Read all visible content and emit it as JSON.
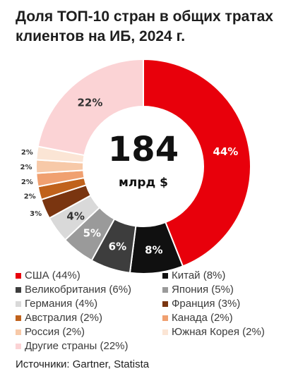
{
  "title": "Доля ТОП-10 стран в общих тратах клиентов на ИБ, 2024 г.",
  "source": "Источники: Gartner, Statista",
  "chart_data": {
    "type": "pie",
    "subtype": "donut",
    "center_value": "184",
    "center_unit": "млрд $",
    "unit": "%",
    "slices": [
      {
        "label": "США",
        "value": 44,
        "value_label": "44%",
        "color": "#e8000b",
        "legend": "США (44%)"
      },
      {
        "label": "Китай",
        "value": 8,
        "value_label": "8%",
        "color": "#101010",
        "legend": "Китай (8%)"
      },
      {
        "label": "Великобритания",
        "value": 6,
        "value_label": "6%",
        "color": "#3d3d3d",
        "legend": "Великобритания (6%)"
      },
      {
        "label": "Япония",
        "value": 5,
        "value_label": "5%",
        "color": "#9a9a9a",
        "legend": "Япония (5%)"
      },
      {
        "label": "Германия",
        "value": 4,
        "value_label": "4%",
        "color": "#d9d9d9",
        "legend": "Германия (4%)"
      },
      {
        "label": "Франция",
        "value": 3,
        "value_label": "3%",
        "color": "#7a3510",
        "legend": "Франция (3%)"
      },
      {
        "label": "Австралия",
        "value": 2,
        "value_label": "2%",
        "color": "#c0621c",
        "legend": "Австралия (2%)"
      },
      {
        "label": "Канада",
        "value": 2,
        "value_label": "2%",
        "color": "#f0a070",
        "legend": "Канада (2%)"
      },
      {
        "label": "Россия",
        "value": 2,
        "value_label": "2%",
        "color": "#f7c9a8",
        "legend": "Россия (2%)"
      },
      {
        "label": "Южная Корея",
        "value": 2,
        "value_label": "2%",
        "color": "#fbe5d5",
        "legend": "Южная Корея (2%)"
      },
      {
        "label": "Другие страны",
        "value": 22,
        "value_label": "22%",
        "color": "#fbd3d5",
        "legend": "Другие страны (22%)"
      }
    ]
  }
}
